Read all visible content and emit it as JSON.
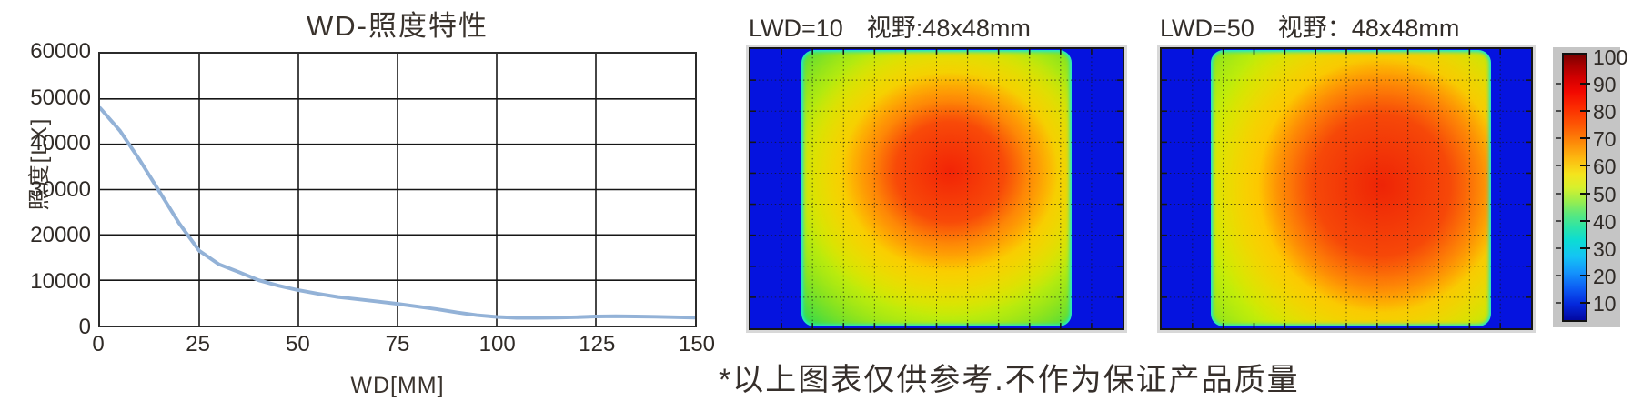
{
  "ui": {
    "line_chart": {
      "title": "WD-照度特性",
      "ylabel": "照度[LX]",
      "xlabel": "WD[MM]",
      "yticks": [
        "60000",
        "50000",
        "40000",
        "30000",
        "20000",
        "10000",
        "0"
      ],
      "xticks": [
        "0",
        "25",
        "50",
        "75",
        "100",
        "125",
        "150"
      ]
    },
    "heatmaps": [
      {
        "lwd_label": "LWD=10",
        "fov_label": "视野:48x48mm"
      },
      {
        "lwd_label": "LWD=50",
        "fov_label": "视野：48x48mm"
      }
    ],
    "colorbar": {
      "ticks": [
        "100",
        "90",
        "80",
        "70",
        "60",
        "50",
        "40",
        "30",
        "20",
        "10"
      ]
    },
    "footnote": "*以上图表仅供参考.不作为保证产品质量"
  },
  "chart_data": [
    {
      "type": "line",
      "title": "WD-照度特性",
      "xlabel": "WD[MM]",
      "ylabel": "照度[LX]",
      "xlim": [
        0,
        150
      ],
      "ylim": [
        0,
        60000
      ],
      "xticks": [
        0,
        25,
        50,
        75,
        100,
        125,
        150
      ],
      "yticks": [
        0,
        10000,
        20000,
        30000,
        40000,
        50000,
        60000
      ],
      "grid": true,
      "legend": "none",
      "line_color": "#93b2d7",
      "x": [
        0,
        5,
        10,
        15,
        20,
        25,
        30,
        35,
        40,
        45,
        50,
        55,
        60,
        65,
        70,
        75,
        80,
        85,
        90,
        95,
        100,
        105,
        110,
        115,
        120,
        125,
        130,
        135,
        140,
        145,
        150
      ],
      "y": [
        48000,
        43000,
        36500,
        29500,
        22500,
        16500,
        13500,
        11800,
        10000,
        8800,
        7800,
        7000,
        6300,
        5800,
        5300,
        4800,
        4200,
        3600,
        2900,
        2300,
        1900,
        1700,
        1700,
        1750,
        1850,
        2000,
        2050,
        2000,
        1950,
        1850,
        1750
      ]
    },
    {
      "type": "heatmap",
      "title": "LWD=10  视野:48x48mm",
      "lwd": 10,
      "field_of_view": "48x48mm",
      "colormap": "jet",
      "value_range": [
        10,
        100
      ],
      "peak_value": 92,
      "edge_value": 5,
      "peak_center": [
        0.55,
        0.45
      ],
      "grid": {
        "cols": 12,
        "rows": 9,
        "style": "dotted"
      },
      "description": "illumination uniformity map: blue side margins, cyan/green field edge, yellow-orange ring, red core slightly right of center"
    },
    {
      "type": "heatmap",
      "title": "LWD=50  视野：48x48mm",
      "lwd": 50,
      "field_of_view": "48x48mm",
      "colormap": "jet",
      "value_range": [
        10,
        100
      ],
      "peak_value": 90,
      "edge_value": 5,
      "peak_center": [
        0.6,
        0.5
      ],
      "grid": {
        "cols": 12,
        "rows": 9,
        "style": "dotted"
      },
      "description": "illumination uniformity map: larger red core shifted right, wide green left zone, thin blue side bands"
    },
    {
      "type": "colorbar",
      "colormap": "jet",
      "ticks": [
        100,
        90,
        80,
        70,
        60,
        50,
        40,
        30,
        20,
        10
      ]
    }
  ],
  "colors": {
    "line": "#93b2d7",
    "axis": "#2b2b2b",
    "text": "#362f2b",
    "heat_blue": "#0513df",
    "heat_green": "#2edc3c",
    "heat_yellow": "#fdf000",
    "heat_orange": "#fd9008",
    "heat_red": "#f02808",
    "colorbar_bg": "#c5c5c5"
  }
}
